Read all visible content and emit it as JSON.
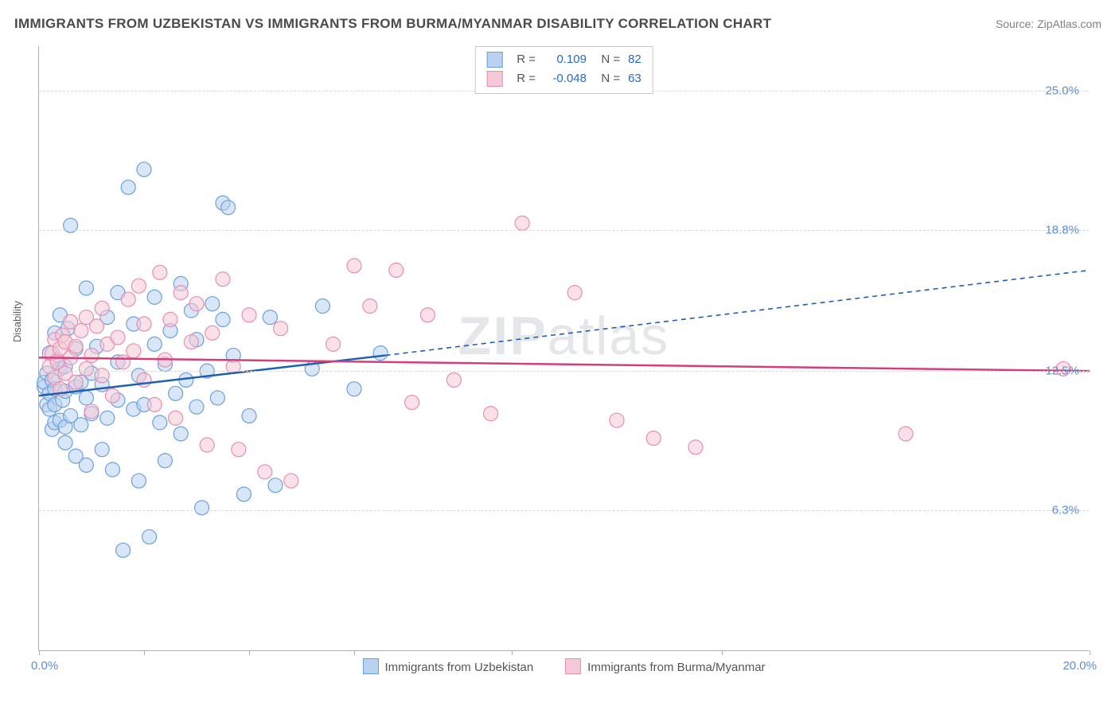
{
  "title": "IMMIGRANTS FROM UZBEKISTAN VS IMMIGRANTS FROM BURMA/MYANMAR DISABILITY CORRELATION CHART",
  "source": "Source: ZipAtlas.com",
  "ylabel": "Disability",
  "watermark_bold": "ZIP",
  "watermark_rest": "atlas",
  "chart": {
    "type": "scatter-with-regression",
    "xlim": [
      0.0,
      20.0
    ],
    "ylim": [
      0.0,
      27.0
    ],
    "x_tick_positions": [
      0.0,
      2.0,
      4.0,
      6.0,
      9.0,
      13.0,
      20.0
    ],
    "x_label_min": "0.0%",
    "x_label_max": "20.0%",
    "y_gridlines": [
      6.3,
      12.5,
      18.8,
      25.0
    ],
    "y_labels": [
      "6.3%",
      "12.5%",
      "18.8%",
      "25.0%"
    ],
    "grid_color": "#d8d8d8",
    "axis_color": "#b0b0b0",
    "label_color": "#5b8dd6",
    "marker_radius": 9,
    "marker_opacity": 0.55,
    "line_width": 2.5,
    "dash_pattern": "6,5",
    "series": [
      {
        "id": "uzbekistan",
        "label": "Immigrants from Uzbekistan",
        "R": "0.109",
        "N": "82",
        "color_fill": "#b9d2f0",
        "color_stroke": "#6aa0de",
        "color_line": "#1f5fb0",
        "regression": {
          "x1": 0.0,
          "y1": 11.4,
          "x2": 6.6,
          "y2": 13.2,
          "x_dash_end": 20.0,
          "y_dash_end": 17.0
        },
        "points": [
          [
            0.1,
            11.8
          ],
          [
            0.1,
            12.0
          ],
          [
            0.15,
            11.0
          ],
          [
            0.15,
            12.4
          ],
          [
            0.2,
            10.8
          ],
          [
            0.2,
            11.5
          ],
          [
            0.2,
            13.3
          ],
          [
            0.25,
            9.9
          ],
          [
            0.25,
            12.1
          ],
          [
            0.3,
            10.2
          ],
          [
            0.3,
            11.0
          ],
          [
            0.3,
            11.7
          ],
          [
            0.3,
            14.2
          ],
          [
            0.35,
            13.0
          ],
          [
            0.4,
            10.3
          ],
          [
            0.4,
            12.6
          ],
          [
            0.4,
            15.0
          ],
          [
            0.45,
            11.2
          ],
          [
            0.5,
            9.3
          ],
          [
            0.5,
            10.0
          ],
          [
            0.5,
            11.6
          ],
          [
            0.5,
            12.7
          ],
          [
            0.55,
            14.4
          ],
          [
            0.6,
            10.5
          ],
          [
            0.6,
            19.0
          ],
          [
            0.7,
            8.7
          ],
          [
            0.7,
            11.8
          ],
          [
            0.7,
            13.5
          ],
          [
            0.8,
            10.1
          ],
          [
            0.8,
            12.0
          ],
          [
            0.9,
            8.3
          ],
          [
            0.9,
            11.3
          ],
          [
            0.9,
            16.2
          ],
          [
            1.0,
            10.6
          ],
          [
            1.0,
            12.4
          ],
          [
            1.1,
            13.6
          ],
          [
            1.2,
            9.0
          ],
          [
            1.2,
            11.9
          ],
          [
            1.3,
            10.4
          ],
          [
            1.3,
            14.9
          ],
          [
            1.4,
            8.1
          ],
          [
            1.5,
            11.2
          ],
          [
            1.5,
            12.9
          ],
          [
            1.5,
            16.0
          ],
          [
            1.6,
            4.5
          ],
          [
            1.7,
            20.7
          ],
          [
            1.8,
            10.8
          ],
          [
            1.8,
            14.6
          ],
          [
            1.9,
            7.6
          ],
          [
            1.9,
            12.3
          ],
          [
            2.0,
            11.0
          ],
          [
            2.0,
            21.5
          ],
          [
            2.1,
            5.1
          ],
          [
            2.2,
            13.7
          ],
          [
            2.2,
            15.8
          ],
          [
            2.3,
            10.2
          ],
          [
            2.4,
            8.5
          ],
          [
            2.4,
            12.8
          ],
          [
            2.5,
            14.3
          ],
          [
            2.6,
            11.5
          ],
          [
            2.7,
            16.4
          ],
          [
            2.7,
            9.7
          ],
          [
            2.8,
            12.1
          ],
          [
            2.9,
            15.2
          ],
          [
            3.0,
            10.9
          ],
          [
            3.0,
            13.9
          ],
          [
            3.1,
            6.4
          ],
          [
            3.2,
            12.5
          ],
          [
            3.3,
            15.5
          ],
          [
            3.4,
            11.3
          ],
          [
            3.5,
            14.8
          ],
          [
            3.5,
            20.0
          ],
          [
            3.6,
            19.8
          ],
          [
            3.7,
            13.2
          ],
          [
            3.9,
            7.0
          ],
          [
            4.0,
            10.5
          ],
          [
            4.4,
            14.9
          ],
          [
            4.5,
            7.4
          ],
          [
            5.2,
            12.6
          ],
          [
            5.4,
            15.4
          ],
          [
            6.0,
            11.7
          ],
          [
            6.5,
            13.3
          ]
        ]
      },
      {
        "id": "burma",
        "label": "Immigrants from Burma/Myanmar",
        "R": "-0.048",
        "N": "63",
        "color_fill": "#f6c9d6",
        "color_stroke": "#e58fb0",
        "color_line": "#d63d7a",
        "regression": {
          "x1": 0.0,
          "y1": 13.1,
          "x2": 20.0,
          "y2": 12.5,
          "x_dash_end": 20.0,
          "y_dash_end": 12.5
        },
        "points": [
          [
            0.2,
            12.7
          ],
          [
            0.25,
            13.3
          ],
          [
            0.3,
            12.2
          ],
          [
            0.3,
            13.9
          ],
          [
            0.35,
            12.9
          ],
          [
            0.4,
            11.7
          ],
          [
            0.4,
            13.5
          ],
          [
            0.45,
            14.1
          ],
          [
            0.5,
            12.4
          ],
          [
            0.5,
            13.8
          ],
          [
            0.6,
            13.1
          ],
          [
            0.6,
            14.7
          ],
          [
            0.7,
            12.0
          ],
          [
            0.7,
            13.6
          ],
          [
            0.8,
            14.3
          ],
          [
            0.9,
            12.6
          ],
          [
            0.9,
            14.9
          ],
          [
            1.0,
            10.7
          ],
          [
            1.0,
            13.2
          ],
          [
            1.1,
            14.5
          ],
          [
            1.2,
            12.3
          ],
          [
            1.2,
            15.3
          ],
          [
            1.3,
            13.7
          ],
          [
            1.4,
            11.4
          ],
          [
            1.5,
            14.0
          ],
          [
            1.6,
            12.9
          ],
          [
            1.7,
            15.7
          ],
          [
            1.8,
            13.4
          ],
          [
            1.9,
            16.3
          ],
          [
            2.0,
            12.1
          ],
          [
            2.0,
            14.6
          ],
          [
            2.2,
            11.0
          ],
          [
            2.3,
            16.9
          ],
          [
            2.4,
            13.0
          ],
          [
            2.5,
            14.8
          ],
          [
            2.6,
            10.4
          ],
          [
            2.7,
            16.0
          ],
          [
            2.9,
            13.8
          ],
          [
            3.0,
            15.5
          ],
          [
            3.2,
            9.2
          ],
          [
            3.3,
            14.2
          ],
          [
            3.5,
            16.6
          ],
          [
            3.7,
            12.7
          ],
          [
            3.8,
            9.0
          ],
          [
            4.0,
            15.0
          ],
          [
            4.3,
            8.0
          ],
          [
            4.6,
            14.4
          ],
          [
            4.8,
            7.6
          ],
          [
            5.6,
            13.7
          ],
          [
            6.0,
            17.2
          ],
          [
            6.3,
            15.4
          ],
          [
            6.8,
            17.0
          ],
          [
            7.1,
            11.1
          ],
          [
            7.4,
            15.0
          ],
          [
            7.9,
            12.1
          ],
          [
            8.6,
            10.6
          ],
          [
            9.2,
            19.1
          ],
          [
            10.2,
            16.0
          ],
          [
            11.0,
            10.3
          ],
          [
            11.7,
            9.5
          ],
          [
            12.5,
            9.1
          ],
          [
            16.5,
            9.7
          ],
          [
            19.5,
            12.6
          ]
        ]
      }
    ]
  }
}
